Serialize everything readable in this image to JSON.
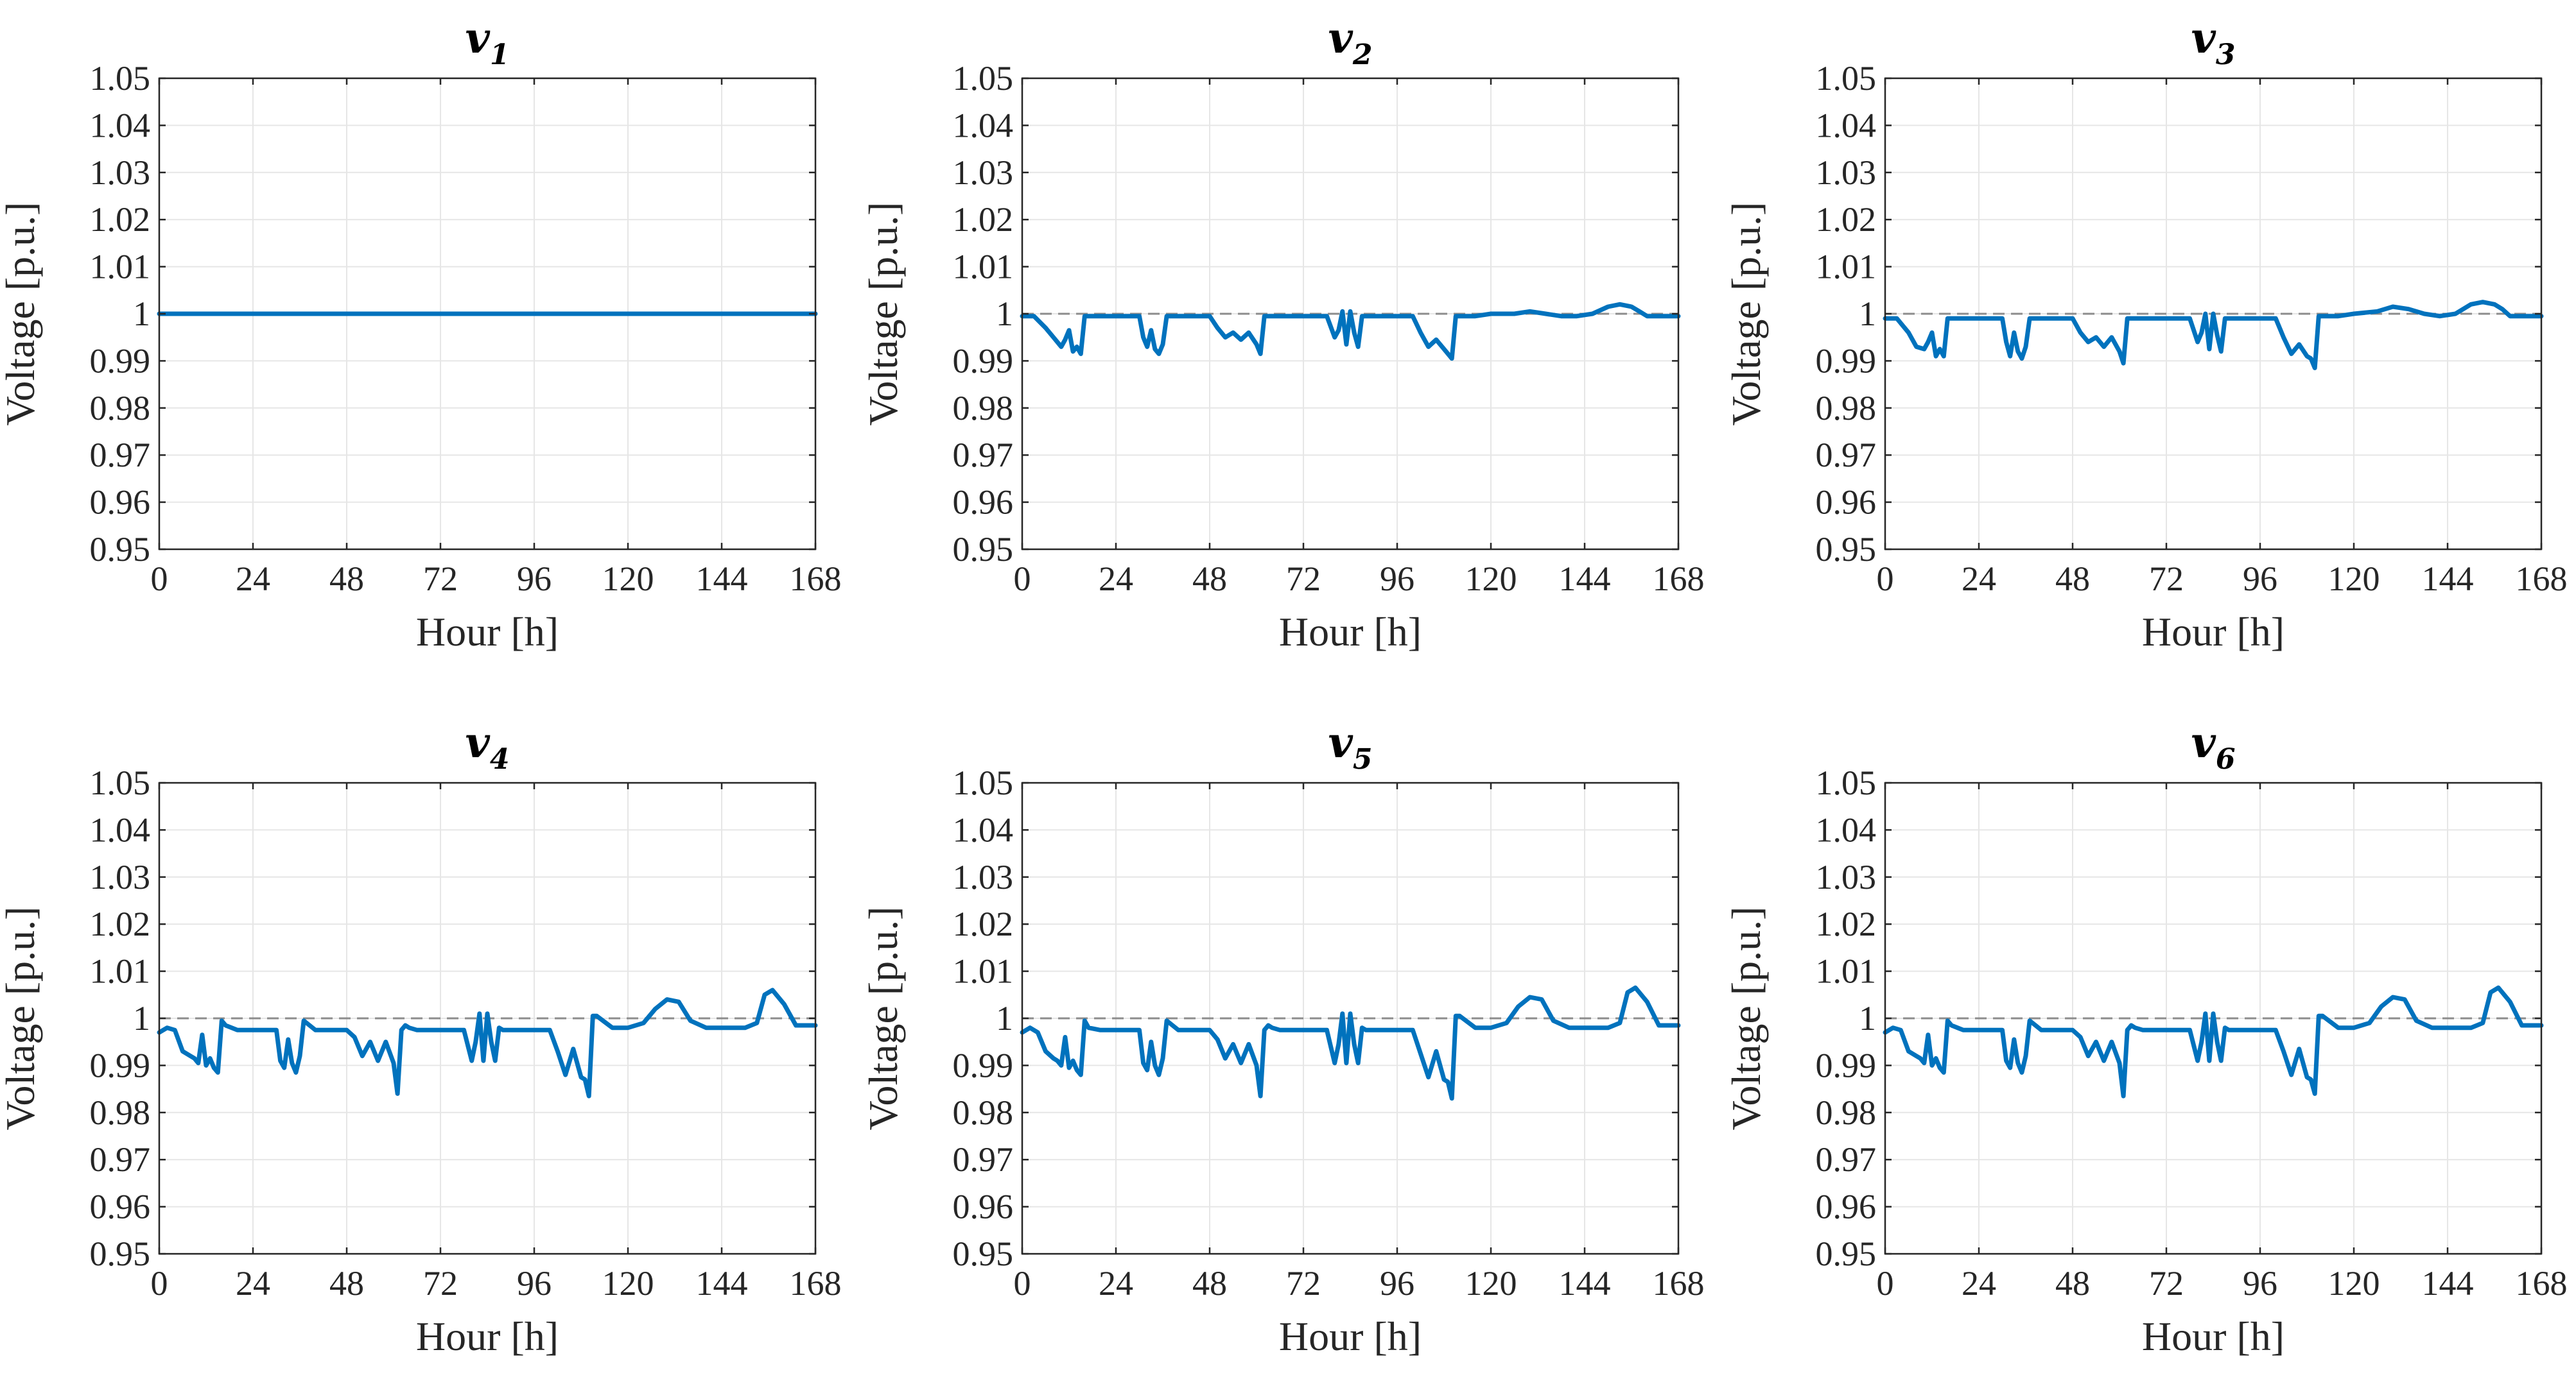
{
  "chart_data": [
    {
      "type": "line",
      "title": "v",
      "subscript": "1",
      "xlabel": "Hour [h]",
      "ylabel": "Voltage [p.u.]",
      "xlim": [
        0,
        168
      ],
      "ylim": [
        0.95,
        1.05
      ],
      "xticks": [
        0,
        24,
        48,
        72,
        96,
        120,
        144,
        168
      ],
      "yticks": [
        0.95,
        0.96,
        0.97,
        0.98,
        0.99,
        1,
        1.01,
        1.02,
        1.03,
        1.04,
        1.05
      ],
      "ytick_labels": [
        "0.95",
        "0.96",
        "0.97",
        "0.98",
        "0.99",
        "1",
        "1.01",
        "1.02",
        "1.03",
        "1.04",
        "1.05"
      ],
      "grid": true,
      "reference_line": 1.0,
      "series": [
        {
          "name": "v1",
          "color": "#0072BD",
          "x": [
            0,
            168
          ],
          "y": [
            1.0,
            1.0
          ]
        }
      ]
    },
    {
      "type": "line",
      "title": "v",
      "subscript": "2",
      "xlabel": "Hour [h]",
      "ylabel": "Voltage [p.u.]",
      "xlim": [
        0,
        168
      ],
      "ylim": [
        0.95,
        1.05
      ],
      "xticks": [
        0,
        24,
        48,
        72,
        96,
        120,
        144,
        168
      ],
      "yticks": [
        0.95,
        0.96,
        0.97,
        0.98,
        0.99,
        1,
        1.01,
        1.02,
        1.03,
        1.04,
        1.05
      ],
      "ytick_labels": [
        "0.95",
        "0.96",
        "0.97",
        "0.98",
        "0.99",
        "1",
        "1.01",
        "1.02",
        "1.03",
        "1.04",
        "1.05"
      ],
      "grid": true,
      "reference_line": 1.0,
      "series": [
        {
          "name": "v2",
          "color": "#0072BD",
          "x": [
            0,
            3,
            6,
            8,
            10,
            11,
            12,
            13,
            14,
            15,
            16,
            17,
            20,
            24,
            28,
            30,
            31,
            32,
            33,
            34,
            35,
            36,
            37,
            40,
            44,
            48,
            50,
            52,
            54,
            56,
            58,
            60,
            61,
            62,
            63,
            64,
            66,
            72,
            78,
            80,
            81,
            82,
            83,
            84,
            85,
            86,
            87,
            88,
            90,
            96,
            100,
            102,
            104,
            106,
            108,
            109,
            110,
            111,
            112,
            116,
            120,
            126,
            130,
            134,
            138,
            142,
            146,
            150,
            153,
            156,
            158,
            160,
            163,
            168
          ],
          "y": [
            0.9995,
            0.9995,
            0.997,
            0.995,
            0.993,
            0.9945,
            0.9965,
            0.992,
            0.993,
            0.9915,
            0.9995,
            0.9995,
            0.9995,
            0.9995,
            0.9995,
            0.9995,
            0.995,
            0.993,
            0.9965,
            0.9925,
            0.9915,
            0.9935,
            0.9995,
            0.9995,
            0.9995,
            0.9995,
            0.997,
            0.995,
            0.996,
            0.9945,
            0.996,
            0.9935,
            0.9915,
            0.9995,
            0.9995,
            0.9995,
            0.9995,
            0.9995,
            0.9995,
            0.995,
            0.9965,
            1.0005,
            0.9935,
            1.0005,
            0.996,
            0.993,
            0.9995,
            0.9995,
            0.9995,
            0.9995,
            0.9995,
            0.996,
            0.993,
            0.9945,
            0.9925,
            0.9915,
            0.9905,
            0.9995,
            0.9995,
            0.9995,
            1.0,
            1.0,
            1.0005,
            1.0,
            0.9995,
            0.9995,
            1.0,
            1.0015,
            1.002,
            1.0015,
            1.0005,
            0.9995,
            0.9995,
            0.9995
          ]
        }
      ]
    },
    {
      "type": "line",
      "title": "v",
      "subscript": "3",
      "xlabel": "Hour [h]",
      "ylabel": "Voltage [p.u.]",
      "xlim": [
        0,
        168
      ],
      "ylim": [
        0.95,
        1.05
      ],
      "xticks": [
        0,
        24,
        48,
        72,
        96,
        120,
        144,
        168
      ],
      "yticks": [
        0.95,
        0.96,
        0.97,
        0.98,
        0.99,
        1,
        1.01,
        1.02,
        1.03,
        1.04,
        1.05
      ],
      "ytick_labels": [
        "0.95",
        "0.96",
        "0.97",
        "0.98",
        "0.99",
        "1",
        "1.01",
        "1.02",
        "1.03",
        "1.04",
        "1.05"
      ],
      "grid": true,
      "reference_line": 1.0,
      "series": [
        {
          "name": "v3",
          "color": "#0072BD",
          "x": [
            0,
            3,
            6,
            8,
            10,
            11,
            12,
            13,
            14,
            15,
            16,
            17,
            20,
            24,
            28,
            30,
            31,
            32,
            33,
            34,
            35,
            36,
            37,
            40,
            44,
            48,
            50,
            52,
            54,
            56,
            58,
            60,
            61,
            62,
            63,
            64,
            66,
            72,
            78,
            80,
            81,
            82,
            83,
            84,
            85,
            86,
            87,
            88,
            90,
            96,
            100,
            102,
            104,
            106,
            108,
            109,
            110,
            111,
            112,
            116,
            120,
            126,
            130,
            134,
            138,
            142,
            146,
            150,
            153,
            156,
            158,
            160,
            163,
            168
          ],
          "y": [
            0.999,
            0.999,
            0.996,
            0.993,
            0.9925,
            0.994,
            0.996,
            0.991,
            0.9925,
            0.991,
            0.999,
            0.999,
            0.999,
            0.999,
            0.999,
            0.999,
            0.994,
            0.991,
            0.996,
            0.992,
            0.9905,
            0.993,
            0.999,
            0.999,
            0.999,
            0.999,
            0.996,
            0.994,
            0.995,
            0.993,
            0.995,
            0.992,
            0.9895,
            0.999,
            0.999,
            0.999,
            0.999,
            0.999,
            0.999,
            0.994,
            0.996,
            1.0,
            0.9925,
            1.0,
            0.9955,
            0.992,
            0.999,
            0.999,
            0.999,
            0.999,
            0.999,
            0.995,
            0.9915,
            0.9935,
            0.991,
            0.9905,
            0.9885,
            0.9995,
            0.9995,
            0.9995,
            1.0,
            1.0005,
            1.0015,
            1.001,
            1.0,
            0.9995,
            1.0,
            1.002,
            1.0025,
            1.002,
            1.001,
            0.9995,
            0.9995,
            0.9995
          ]
        }
      ]
    },
    {
      "type": "line",
      "title": "v",
      "subscript": "4",
      "xlabel": "Hour [h]",
      "ylabel": "Voltage [p.u.]",
      "xlim": [
        0,
        168
      ],
      "ylim": [
        0.95,
        1.05
      ],
      "xticks": [
        0,
        24,
        48,
        72,
        96,
        120,
        144,
        168
      ],
      "yticks": [
        0.95,
        0.96,
        0.97,
        0.98,
        0.99,
        1,
        1.01,
        1.02,
        1.03,
        1.04,
        1.05
      ],
      "ytick_labels": [
        "0.95",
        "0.96",
        "0.97",
        "0.98",
        "0.99",
        "1",
        "1.01",
        "1.02",
        "1.03",
        "1.04",
        "1.05"
      ],
      "grid": true,
      "reference_line": 1.0,
      "series": [
        {
          "name": "v4",
          "color": "#0072BD",
          "x": [
            0,
            2,
            4,
            6,
            8,
            9,
            10,
            11,
            12,
            13,
            14,
            15,
            16,
            17,
            20,
            24,
            28,
            30,
            31,
            32,
            33,
            34,
            35,
            36,
            37,
            40,
            44,
            48,
            50,
            52,
            54,
            56,
            58,
            60,
            61,
            62,
            63,
            64,
            66,
            72,
            78,
            80,
            81,
            82,
            83,
            84,
            85,
            86,
            87,
            88,
            90,
            96,
            100,
            102,
            104,
            106,
            108,
            109,
            110,
            111,
            112,
            116,
            120,
            124,
            127,
            130,
            133,
            136,
            140,
            146,
            150,
            153,
            155,
            157,
            160,
            163,
            168
          ],
          "y": [
            0.997,
            0.998,
            0.9975,
            0.993,
            0.992,
            0.9915,
            0.9905,
            0.9965,
            0.99,
            0.9915,
            0.9895,
            0.9885,
            0.9995,
            0.9985,
            0.9975,
            0.9975,
            0.9975,
            0.9975,
            0.991,
            0.9895,
            0.9955,
            0.9905,
            0.9885,
            0.992,
            0.9995,
            0.9975,
            0.9975,
            0.9975,
            0.996,
            0.992,
            0.995,
            0.991,
            0.995,
            0.9905,
            0.984,
            0.9975,
            0.9985,
            0.998,
            0.9975,
            0.9975,
            0.9975,
            0.991,
            0.995,
            1.001,
            0.991,
            1.001,
            0.995,
            0.991,
            0.998,
            0.9975,
            0.9975,
            0.9975,
            0.9975,
            0.993,
            0.988,
            0.9935,
            0.9875,
            0.987,
            0.9835,
            1.0005,
            1.0005,
            0.998,
            0.998,
            0.999,
            1.002,
            1.004,
            1.0035,
            0.9995,
            0.998,
            0.998,
            0.998,
            0.999,
            1.005,
            1.006,
            1.003,
            0.9985,
            0.9985
          ]
        }
      ]
    },
    {
      "type": "line",
      "title": "v",
      "subscript": "5",
      "xlabel": "Hour [h]",
      "ylabel": "Voltage [p.u.]",
      "xlim": [
        0,
        168
      ],
      "ylim": [
        0.95,
        1.05
      ],
      "xticks": [
        0,
        24,
        48,
        72,
        96,
        120,
        144,
        168
      ],
      "yticks": [
        0.95,
        0.96,
        0.97,
        0.98,
        0.99,
        1,
        1.01,
        1.02,
        1.03,
        1.04,
        1.05
      ],
      "ytick_labels": [
        "0.95",
        "0.96",
        "0.97",
        "0.98",
        "0.99",
        "1",
        "1.01",
        "1.02",
        "1.03",
        "1.04",
        "1.05"
      ],
      "grid": true,
      "reference_line": 1.0,
      "series": [
        {
          "name": "v5",
          "color": "#0072BD",
          "x": [
            0,
            2,
            4,
            6,
            8,
            9,
            10,
            11,
            12,
            13,
            14,
            15,
            16,
            17,
            20,
            24,
            28,
            30,
            31,
            32,
            33,
            34,
            35,
            36,
            37,
            40,
            44,
            48,
            50,
            52,
            54,
            56,
            58,
            60,
            61,
            62,
            63,
            64,
            66,
            72,
            78,
            80,
            81,
            82,
            83,
            84,
            85,
            86,
            87,
            88,
            90,
            96,
            100,
            102,
            104,
            106,
            108,
            109,
            110,
            111,
            112,
            116,
            120,
            124,
            127,
            130,
            133,
            136,
            140,
            146,
            150,
            153,
            155,
            157,
            160,
            163,
            168
          ],
          "y": [
            0.997,
            0.998,
            0.997,
            0.993,
            0.9915,
            0.991,
            0.99,
            0.996,
            0.9895,
            0.991,
            0.989,
            0.988,
            0.9995,
            0.998,
            0.9975,
            0.9975,
            0.9975,
            0.9975,
            0.9905,
            0.989,
            0.995,
            0.99,
            0.988,
            0.9915,
            0.9995,
            0.9975,
            0.9975,
            0.9975,
            0.9955,
            0.9915,
            0.9945,
            0.9905,
            0.9945,
            0.99,
            0.9835,
            0.9975,
            0.9985,
            0.998,
            0.9975,
            0.9975,
            0.9975,
            0.9905,
            0.9945,
            1.001,
            0.9905,
            1.001,
            0.9945,
            0.9905,
            0.998,
            0.9975,
            0.9975,
            0.9975,
            0.9975,
            0.9925,
            0.9875,
            0.993,
            0.987,
            0.9865,
            0.983,
            1.0005,
            1.0005,
            0.998,
            0.998,
            0.999,
            1.0025,
            1.0045,
            1.004,
            0.9995,
            0.998,
            0.998,
            0.998,
            0.999,
            1.0055,
            1.0065,
            1.0035,
            0.9985,
            0.9985
          ]
        }
      ]
    },
    {
      "type": "line",
      "title": "v",
      "subscript": "6",
      "xlabel": "Hour [h]",
      "ylabel": "Voltage [p.u.]",
      "xlim": [
        0,
        168
      ],
      "ylim": [
        0.95,
        1.05
      ],
      "xticks": [
        0,
        24,
        48,
        72,
        96,
        120,
        144,
        168
      ],
      "yticks": [
        0.95,
        0.96,
        0.97,
        0.98,
        0.99,
        1,
        1.01,
        1.02,
        1.03,
        1.04,
        1.05
      ],
      "ytick_labels": [
        "0.95",
        "0.96",
        "0.97",
        "0.98",
        "0.99",
        "1",
        "1.01",
        "1.02",
        "1.03",
        "1.04",
        "1.05"
      ],
      "grid": true,
      "reference_line": 1.0,
      "series": [
        {
          "name": "v6",
          "color": "#0072BD",
          "x": [
            0,
            2,
            4,
            6,
            8,
            9,
            10,
            11,
            12,
            13,
            14,
            15,
            16,
            17,
            20,
            24,
            28,
            30,
            31,
            32,
            33,
            34,
            35,
            36,
            37,
            40,
            44,
            48,
            50,
            52,
            54,
            56,
            58,
            60,
            61,
            62,
            63,
            64,
            66,
            72,
            78,
            80,
            81,
            82,
            83,
            84,
            85,
            86,
            87,
            88,
            90,
            96,
            100,
            102,
            104,
            106,
            108,
            109,
            110,
            111,
            112,
            116,
            120,
            124,
            127,
            130,
            133,
            136,
            140,
            146,
            150,
            153,
            155,
            157,
            160,
            163,
            168
          ],
          "y": [
            0.997,
            0.998,
            0.9975,
            0.993,
            0.992,
            0.9915,
            0.9905,
            0.9965,
            0.99,
            0.9915,
            0.9895,
            0.9885,
            0.9995,
            0.9985,
            0.9975,
            0.9975,
            0.9975,
            0.9975,
            0.991,
            0.9895,
            0.9955,
            0.9905,
            0.9885,
            0.992,
            0.9995,
            0.9975,
            0.9975,
            0.9975,
            0.996,
            0.992,
            0.995,
            0.991,
            0.995,
            0.9905,
            0.9835,
            0.9975,
            0.9985,
            0.998,
            0.9975,
            0.9975,
            0.9975,
            0.991,
            0.995,
            1.001,
            0.991,
            1.001,
            0.995,
            0.991,
            0.998,
            0.9975,
            0.9975,
            0.9975,
            0.9975,
            0.993,
            0.988,
            0.9935,
            0.9875,
            0.987,
            0.984,
            1.0005,
            1.0005,
            0.998,
            0.998,
            0.999,
            1.0025,
            1.0045,
            1.004,
            0.9995,
            0.998,
            0.998,
            0.998,
            0.999,
            1.0055,
            1.0065,
            1.0035,
            0.9985,
            0.9985
          ]
        }
      ]
    }
  ],
  "colors": {
    "line": "#0072BD",
    "grid": "#e6e6e6",
    "axes": "#262626",
    "reference": "#8c8c8c"
  }
}
